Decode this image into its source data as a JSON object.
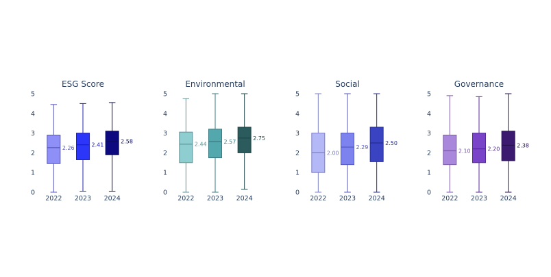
{
  "chart_data": [
    {
      "type": "box",
      "title": "ESG Score",
      "categories": [
        "2022",
        "2023",
        "2024"
      ],
      "ylim": [
        0,
        5
      ],
      "yticks": [
        "0",
        "1",
        "2",
        "3",
        "4",
        "5"
      ],
      "colors": {
        "fill": [
          "#8f8ff8",
          "#2b36f8",
          "#0c0a7e"
        ],
        "line": [
          "#5555b8",
          "#2222b0",
          "#0a0a5e"
        ]
      },
      "boxes": [
        {
          "min": 0,
          "q1": 1.45,
          "median": 2.26,
          "q3": 2.9,
          "max": 4.45,
          "label": "2.26"
        },
        {
          "min": 0.05,
          "q1": 1.65,
          "median": 2.41,
          "q3": 3.0,
          "max": 4.5,
          "label": "2.41"
        },
        {
          "min": 0.05,
          "q1": 1.9,
          "median": 2.58,
          "q3": 3.1,
          "max": 4.55,
          "label": "2.58"
        }
      ]
    },
    {
      "type": "box",
      "title": "Environmental",
      "categories": [
        "2022",
        "2023",
        "2024"
      ],
      "ylim": [
        0,
        5
      ],
      "yticks": [
        "0",
        "1",
        "2",
        "3",
        "4",
        "5"
      ],
      "colors": {
        "fill": [
          "#8ecdd0",
          "#53a8ad",
          "#2b5b5c"
        ],
        "line": [
          "#5a9498",
          "#3a7a80",
          "#1e4445"
        ]
      },
      "boxes": [
        {
          "min": 0,
          "q1": 1.5,
          "median": 2.44,
          "q3": 3.05,
          "max": 4.75,
          "label": "2.44"
        },
        {
          "min": 0,
          "q1": 1.75,
          "median": 2.57,
          "q3": 3.2,
          "max": 5.0,
          "label": "2.57"
        },
        {
          "min": 0.15,
          "q1": 2.0,
          "median": 2.75,
          "q3": 3.3,
          "max": 5.0,
          "label": "2.75"
        }
      ]
    },
    {
      "type": "box",
      "title": "Social",
      "categories": [
        "2022",
        "2023",
        "2024"
      ],
      "ylim": [
        0,
        5
      ],
      "yticks": [
        "0",
        "1",
        "2",
        "3",
        "4",
        "5"
      ],
      "colors": {
        "fill": [
          "#b4b8f6",
          "#7c82ee",
          "#3a44c2"
        ],
        "line": [
          "#7a7ec4",
          "#5055c0",
          "#262c8e"
        ]
      },
      "boxes": [
        {
          "min": 0,
          "q1": 1.0,
          "median": 2.0,
          "q3": 3.0,
          "max": 5.0,
          "label": "2.00"
        },
        {
          "min": 0,
          "q1": 1.4,
          "median": 2.29,
          "q3": 3.0,
          "max": 5.0,
          "label": "2.29"
        },
        {
          "min": 0,
          "q1": 1.55,
          "median": 2.5,
          "q3": 3.3,
          "max": 5.0,
          "label": "2.50"
        }
      ]
    },
    {
      "type": "box",
      "title": "Governance",
      "categories": [
        "2022",
        "2023",
        "2024"
      ],
      "ylim": [
        0,
        5
      ],
      "yticks": [
        "0",
        "1",
        "2",
        "3",
        "4",
        "5"
      ],
      "colors": {
        "fill": [
          "#a988dc",
          "#7a44c8",
          "#3b1a70"
        ],
        "line": [
          "#7a5aa8",
          "#542a98",
          "#281050"
        ]
      },
      "boxes": [
        {
          "min": 0,
          "q1": 1.4,
          "median": 2.1,
          "q3": 2.9,
          "max": 4.9,
          "label": "2.10"
        },
        {
          "min": 0,
          "q1": 1.5,
          "median": 2.2,
          "q3": 3.0,
          "max": 4.85,
          "label": "2.20"
        },
        {
          "min": 0,
          "q1": 1.6,
          "median": 2.38,
          "q3": 3.1,
          "max": 5.0,
          "label": "2.38"
        }
      ]
    }
  ]
}
